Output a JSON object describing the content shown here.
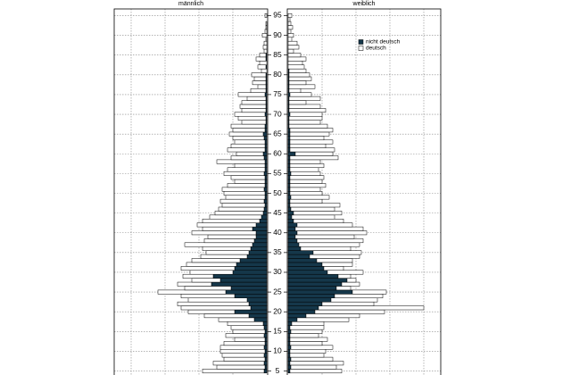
{
  "chart_data": {
    "type": "pyramid",
    "ages": [
      5,
      6,
      7,
      8,
      9,
      10,
      11,
      12,
      13,
      14,
      15,
      16,
      17,
      18,
      19,
      20,
      21,
      22,
      23,
      24,
      25,
      26,
      27,
      28,
      29,
      30,
      31,
      32,
      33,
      34,
      35,
      36,
      37,
      38,
      39,
      40,
      41,
      42,
      43,
      44,
      45,
      46,
      47,
      48,
      49,
      50,
      51,
      52,
      53,
      54,
      55,
      56,
      57,
      58,
      59,
      60,
      61,
      62,
      63,
      64,
      65,
      66,
      67,
      68,
      69,
      70,
      71,
      72,
      73,
      74,
      75,
      76,
      77,
      78,
      79,
      80,
      81,
      82,
      83,
      84,
      85,
      86,
      87,
      88,
      89,
      90,
      91,
      92,
      93,
      94,
      95
    ],
    "ylim": [
      4,
      96
    ],
    "yticks": [
      5,
      10,
      15,
      20,
      25,
      30,
      35,
      40,
      45,
      50,
      55,
      60,
      65,
      70,
      75,
      80,
      85,
      90,
      95
    ],
    "xlim": [
      0,
      170
    ],
    "grid_x": [
      38,
      76,
      114,
      152
    ],
    "grid": true,
    "panels": [
      {
        "title": "männlich",
        "direction": "left",
        "series": [
          {
            "name": "nicht deutsch",
            "color": "#15374a",
            "values": [
              3,
              2,
              3,
              2,
              3,
              2,
              3,
              2,
              2,
              3,
              2,
              3,
              4,
              14,
              20,
              36,
              18,
              20,
              22,
              36,
              46,
              40,
              62,
              52,
              60,
              38,
              36,
              34,
              30,
              22,
              20,
              18,
              16,
              14,
              12,
              12,
              16,
              12,
              8,
              6,
              4,
              3,
              2,
              3,
              2,
              2,
              3,
              2,
              2,
              2,
              3,
              2,
              2,
              2,
              3,
              4,
              2,
              2,
              2,
              3,
              4,
              2,
              2,
              1,
              1,
              2,
              1,
              1,
              1,
              1,
              2,
              1,
              1,
              1,
              1,
              1,
              0,
              1,
              0,
              1,
              1,
              0,
              0,
              0,
              0,
              0,
              0,
              0,
              0,
              0,
              0
            ]
          },
          {
            "name": "deutsch",
            "color": "#ffffff",
            "values": [
              69,
              54,
              57,
              46,
              47,
              50,
              49,
              46,
              34,
              43,
              36,
              37,
              40,
              40,
              50,
              52,
              78,
              80,
              66,
              60,
              76,
              52,
              38,
              32,
              34,
              48,
              60,
              56,
              54,
              52,
              48,
              54,
              76,
              56,
              54,
              72,
              56,
              66,
              64,
              58,
              54,
              51,
              48,
              49,
              44,
              46,
              47,
              42,
              34,
              38,
              45,
              42,
              34,
              54,
              37,
              30,
              42,
              38,
              34,
              35,
              38,
              36,
              38,
              27,
              31,
              34,
              27,
              29,
              27,
              21,
              30,
              17,
              9,
              15,
              13,
              16,
              6,
              9,
              8,
              11,
              7,
              3,
              4,
              3,
              1,
              5,
              2,
              1,
              1,
              0,
              2
            ]
          }
        ]
      },
      {
        "title": "weiblich",
        "direction": "right",
        "series": [
          {
            "name": "nicht deutsch",
            "color": "#15374a",
            "values": [
              2,
              3,
              2,
              3,
              2,
              2,
              3,
              2,
              2,
              2,
              3,
              2,
              4,
              10,
              20,
              30,
              34,
              38,
              48,
              52,
              72,
              54,
              60,
              66,
              56,
              44,
              40,
              38,
              32,
              24,
              28,
              14,
              12,
              10,
              8,
              10,
              8,
              10,
              6,
              4,
              6,
              3,
              2,
              2,
              3,
              2,
              2,
              2,
              2,
              2,
              3,
              2,
              2,
              2,
              2,
              8,
              2,
              2,
              2,
              2,
              2,
              2,
              1,
              1,
              1,
              2,
              1,
              1,
              1,
              1,
              2,
              1,
              1,
              1,
              1,
              1,
              1,
              0,
              0,
              0,
              0,
              0,
              0,
              0,
              0,
              0,
              0,
              0,
              0,
              0,
              0
            ]
          },
          {
            "name": "deutsch",
            "color": "#ffffff",
            "values": [
              58,
              51,
              60,
              47,
              38,
              40,
              47,
              36,
              42,
              32,
              35,
              38,
              36,
              58,
              60,
              78,
              118,
              58,
              52,
              54,
              38,
              16,
              20,
              10,
              14,
              40,
              22,
              34,
              40,
              56,
              54,
              56,
              68,
              74,
              66,
              78,
              76,
              62,
              56,
              48,
              54,
              49,
              56,
              36,
              43,
              36,
              34,
              40,
              36,
              38,
              33,
              32,
              38,
              34,
              54,
              42,
              50,
              40,
              48,
              38,
              44,
              48,
              43,
              35,
              37,
              36,
              41,
              35,
              19,
              35,
              24,
              13,
              29,
              19,
              25,
              23,
              19,
              18,
              16,
              20,
              14,
              6,
              12,
              10,
              4,
              6,
              3,
              5,
              3,
              2,
              4
            ]
          }
        ]
      }
    ]
  }
}
